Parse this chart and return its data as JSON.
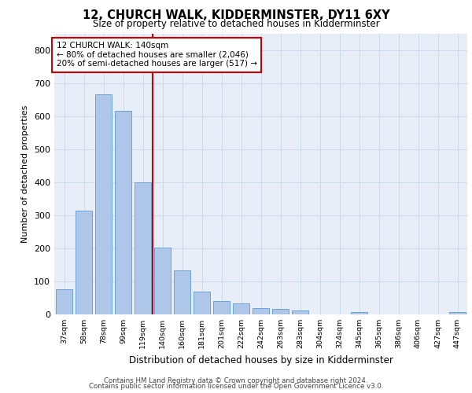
{
  "title": "12, CHURCH WALK, KIDDERMINSTER, DY11 6XY",
  "subtitle": "Size of property relative to detached houses in Kidderminster",
  "xlabel": "Distribution of detached houses by size in Kidderminster",
  "ylabel": "Number of detached properties",
  "categories": [
    "37sqm",
    "58sqm",
    "78sqm",
    "99sqm",
    "119sqm",
    "140sqm",
    "160sqm",
    "181sqm",
    "201sqm",
    "222sqm",
    "242sqm",
    "263sqm",
    "283sqm",
    "304sqm",
    "324sqm",
    "345sqm",
    "365sqm",
    "386sqm",
    "406sqm",
    "427sqm",
    "447sqm"
  ],
  "values": [
    75,
    313,
    665,
    615,
    400,
    203,
    133,
    68,
    40,
    33,
    20,
    16,
    11,
    0,
    0,
    6,
    0,
    0,
    0,
    0,
    6
  ],
  "bar_color": "#aec6e8",
  "bar_edge_color": "#5b9bd5",
  "vline_index": 5,
  "vline_color": "#cc0000",
  "annotation_line1": "12 CHURCH WALK: 140sqm",
  "annotation_line2": "← 80% of detached houses are smaller (2,046)",
  "annotation_line3": "20% of semi-detached houses are larger (517) →",
  "annotation_box_color": "#cc0000",
  "ylim": [
    0,
    850
  ],
  "yticks": [
    0,
    100,
    200,
    300,
    400,
    500,
    600,
    700,
    800
  ],
  "grid_color": "#c8d4e8",
  "bg_color": "#e8eef8",
  "footer_line1": "Contains HM Land Registry data © Crown copyright and database right 2024.",
  "footer_line2": "Contains public sector information licensed under the Open Government Licence v3.0."
}
